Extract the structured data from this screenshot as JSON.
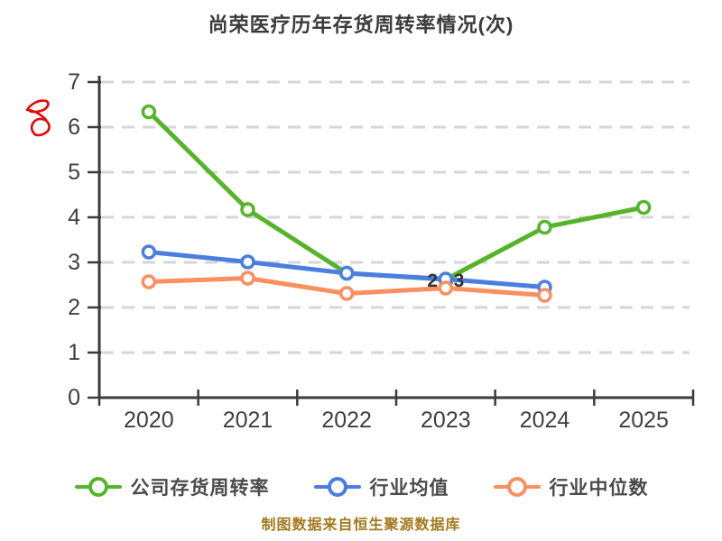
{
  "chart_data": {
    "type": "line",
    "title": "尚荣医疗历年存货周转率情况(次)",
    "caption": "制图数据来自恒生聚源数据库",
    "y_axis_unit": "次",
    "categories": [
      "2020",
      "2021",
      "2022",
      "2023",
      "2024",
      "2025"
    ],
    "y_ticks": [
      0,
      1,
      2,
      3,
      4,
      5,
      6,
      7
    ],
    "ylim": [
      0,
      7
    ],
    "grid": "horizontal-dashed",
    "legend_position": "bottom",
    "style": "xkcd-handdrawn",
    "series": [
      {
        "name": "公司存货周转率",
        "color": "#56b42b",
        "values": [
          6.34,
          4.17,
          2.76,
          2.62,
          3.78,
          4.22
        ]
      },
      {
        "name": "行业均值",
        "color": "#4a7ee0",
        "values": [
          3.23,
          3.01,
          2.76,
          2.63,
          2.45,
          null
        ]
      },
      {
        "name": "行业中位数",
        "color": "#fa8f60",
        "values": [
          2.57,
          2.65,
          2.31,
          2.43,
          2.27,
          null
        ]
      }
    ],
    "annotations": [
      {
        "text": "2.63",
        "category": "2023",
        "value": 2.62,
        "color": "#333333"
      }
    ],
    "colors": {
      "text": "#3f3f3f",
      "grid": "#d6d6d6",
      "axis": "#3b3b3b",
      "caption": "#a1791c",
      "unit_scribble": "#e60505",
      "marker_fill": "#ffffff"
    }
  }
}
